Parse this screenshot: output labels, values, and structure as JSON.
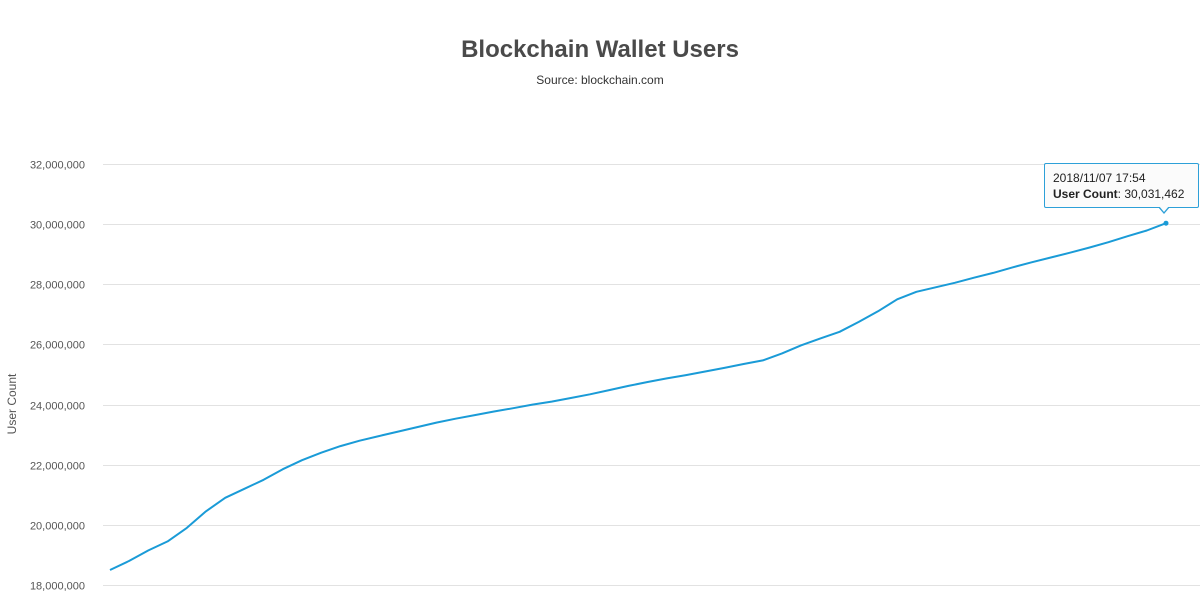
{
  "chart_data": {
    "type": "line",
    "title": "Blockchain Wallet Users",
    "subtitle": "Source: blockchain.com",
    "xlabel": "",
    "ylabel": "User Count",
    "ylim": [
      18000000,
      32000000
    ],
    "yticks": [
      18000000,
      20000000,
      22000000,
      24000000,
      26000000,
      28000000,
      30000000,
      32000000
    ],
    "ytick_labels": [
      "18,000,000",
      "20,000,000",
      "22,000,000",
      "24,000,000",
      "26,000,000",
      "28,000,000",
      "30,000,000",
      "32,000,000"
    ],
    "x_axis_labels_visible": false,
    "grid": true,
    "line_color": "#1a9bd7",
    "series": [
      {
        "values": [
          18500000,
          18800000,
          19150000,
          19450000,
          19900000,
          20450000,
          20900000,
          21200000,
          21500000,
          21850000,
          22150000,
          22400000,
          22620000,
          22800000,
          22950000,
          23100000,
          23250000,
          23400000,
          23530000,
          23650000,
          23770000,
          23880000,
          24000000,
          24100000,
          24220000,
          24340000,
          24480000,
          24620000,
          24750000,
          24870000,
          24980000,
          25100000,
          25220000,
          25350000,
          25470000,
          25700000,
          25970000,
          26200000,
          26420000,
          26750000,
          27100000,
          27500000,
          27750000,
          27900000,
          28050000,
          28220000,
          28380000,
          28560000,
          28730000,
          28890000,
          29050000,
          29220000,
          29400000,
          29600000,
          29790000,
          30031462
        ]
      }
    ]
  },
  "tooltip": {
    "date": "2018/11/07 17:54",
    "label": "User Count",
    "value": "30,031,462"
  }
}
